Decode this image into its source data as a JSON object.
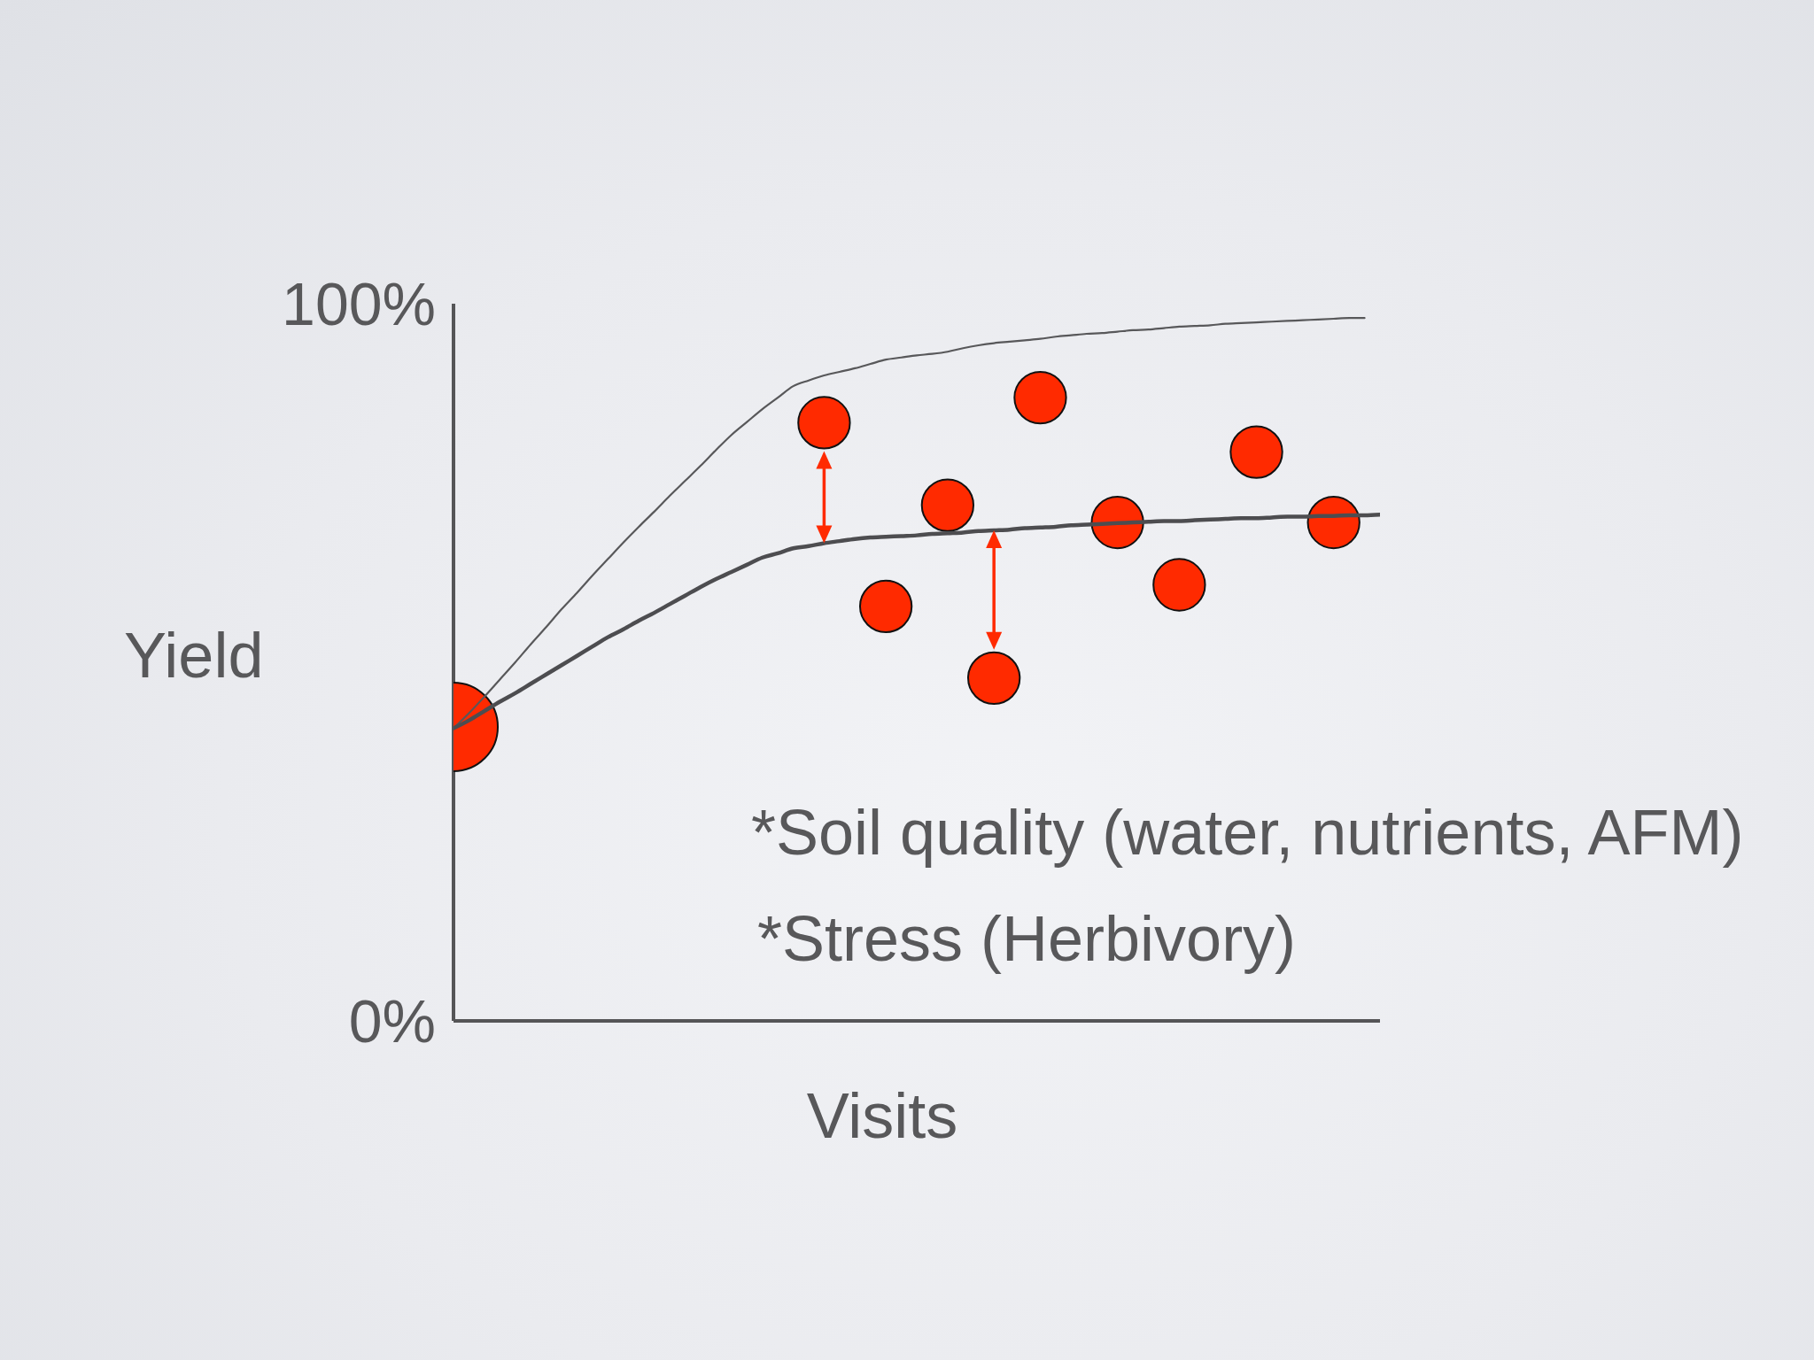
{
  "chart_data": {
    "type": "bubble",
    "xlabel": "Visits",
    "ylabel": "Yield",
    "categories": [
      null,
      null,
      null,
      null,
      null,
      null,
      null,
      null,
      null,
      null,
      null,
      null,
      null,
      null,
      null,
      null,
      null,
      null,
      null,
      null,
      null,
      null,
      null,
      null,
      null,
      null,
      null,
      null,
      null,
      null,
      null,
      null,
      null,
      null,
      null,
      null,
      null,
      null,
      null,
      null,
      null,
      null,
      null,
      null,
      null,
      null,
      null,
      null,
      null,
      null,
      null,
      null,
      null,
      null,
      null,
      null,
      null,
      null,
      null,
      null,
      null
    ],
    "ylim": [
      0,
      100
    ],
    "yticks": [
      {
        "value": 0,
        "label": "0%"
      },
      {
        "value": 100,
        "label": "100%"
      }
    ],
    "series": [
      {
        "color": "#ff2a00",
        "values": [
          41.0,
          null,
          null,
          null,
          null,
          null,
          null,
          null,
          null,
          null,
          null,
          null,
          null,
          null,
          null,
          null,
          null,
          null,
          null,
          null,
          null,
          null,
          null,
          null,
          83.4,
          null,
          null,
          null,
          57.8,
          null,
          null,
          null,
          71.9,
          null,
          null,
          47.8,
          null,
          null,
          86.9,
          null,
          null,
          null,
          null,
          69.5,
          null,
          null,
          null,
          60.8,
          null,
          null,
          null,
          null,
          79.3,
          null,
          null,
          null,
          null,
          69.5,
          null,
          null,
          null
        ],
        "sizes": [
          1,
          null,
          null,
          null,
          null,
          null,
          null,
          null,
          null,
          null,
          null,
          null,
          null,
          null,
          null,
          null,
          null,
          null,
          null,
          null,
          null,
          null,
          null,
          null,
          0.34,
          null,
          null,
          null,
          0.34,
          null,
          null,
          null,
          0.34,
          null,
          null,
          0.34,
          null,
          null,
          0.34,
          null,
          null,
          null,
          null,
          0.34,
          null,
          null,
          null,
          0.34,
          null,
          null,
          null,
          null,
          0.34,
          null,
          null,
          null,
          null,
          0.34,
          null,
          null,
          null
        ]
      },
      {
        "type": "line",
        "color": "#58585a",
        "values": [
          40.8,
          42.9,
          45.2,
          47.6,
          50.0,
          52.5,
          54.9,
          57.4,
          59.7,
          62.1,
          64.4,
          66.7,
          68.9,
          71.0,
          73.2,
          75.3,
          77.4,
          79.6,
          81.7,
          83.5,
          85.3,
          86.9,
          88.5,
          89.3,
          90.0,
          90.5,
          91.0,
          91.6,
          92.2,
          92.5,
          92.8,
          93.0,
          93.3,
          93.8,
          94.2,
          94.5,
          94.7,
          94.9,
          95.1,
          95.4,
          95.6,
          95.8,
          95.9,
          96.1,
          96.3,
          96.4,
          96.6,
          96.8,
          96.9,
          97.0,
          97.2,
          97.3,
          97.4,
          97.5,
          97.6,
          97.7,
          97.8,
          97.9,
          98.0,
          98.0,
          null
        ]
      },
      {
        "type": "line",
        "color": "#4d4d50",
        "values": [
          40.8,
          41.9,
          43.2,
          44.5,
          45.7,
          47.0,
          48.3,
          49.6,
          50.9,
          52.2,
          53.5,
          54.6,
          55.8,
          56.9,
          58.1,
          59.3,
          60.5,
          61.6,
          62.6,
          63.6,
          64.6,
          65.2,
          65.9,
          66.2,
          66.6,
          66.9,
          67.2,
          67.4,
          67.5,
          67.6,
          67.7,
          67.9,
          68.0,
          68.1,
          68.3,
          68.4,
          68.5,
          68.7,
          68.8,
          68.9,
          69.1,
          69.2,
          69.3,
          69.4,
          69.5,
          69.6,
          69.7,
          69.7,
          69.8,
          69.9,
          70.0,
          70.1,
          70.1,
          70.2,
          70.3,
          70.3,
          70.4,
          70.4,
          70.5,
          70.5,
          70.6
        ]
      }
    ],
    "annotations": [
      "*Soil quality (water, nutrients, AFM)",
      "*Stress (Herbivory)"
    ]
  }
}
